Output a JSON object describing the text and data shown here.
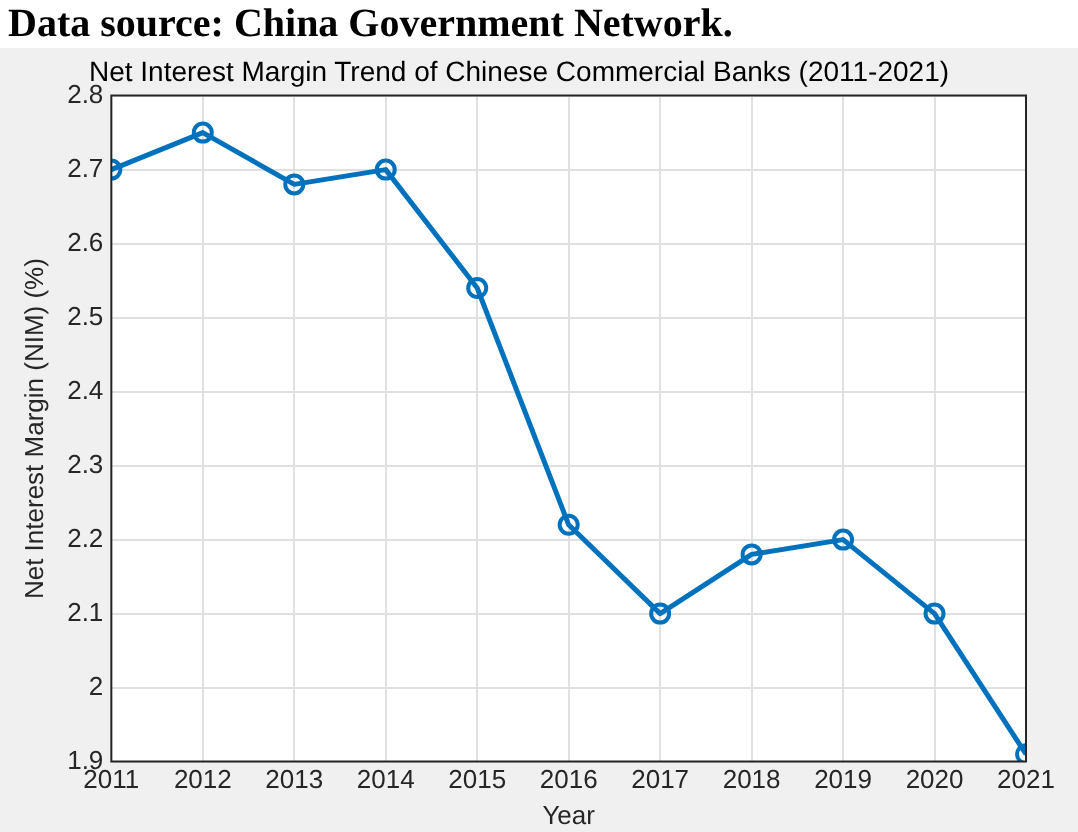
{
  "chart_data": {
    "type": "line",
    "title": "Net Interest Margin Trend of Chinese Commercial Banks (2011-2021)",
    "xlabel": "Year",
    "ylabel": "Net Interest Margin (NIM) (%)",
    "annotations": [
      "Data source: China Government Network."
    ],
    "x": [
      2011,
      2012,
      2013,
      2014,
      2015,
      2016,
      2017,
      2018,
      2019,
      2020,
      2021
    ],
    "series": [
      {
        "color": "#0072bd",
        "values": [
          2.7,
          2.75,
          2.68,
          2.7,
          2.54,
          2.22,
          2.1,
          2.18,
          2.2,
          2.1,
          1.91
        ]
      }
    ],
    "xlim": [
      2011,
      2021
    ],
    "xticks": [
      2011,
      2012,
      2013,
      2014,
      2015,
      2016,
      2017,
      2018,
      2019,
      2020,
      2021
    ],
    "ylim": [
      1.9,
      2.8
    ],
    "yticks": [
      1.9,
      2,
      2.1,
      2.2,
      2.3,
      2.4,
      2.5,
      2.6,
      2.7,
      2.8
    ],
    "grid": true,
    "legend": false,
    "marker": "circle",
    "line_style": "solid"
  }
}
